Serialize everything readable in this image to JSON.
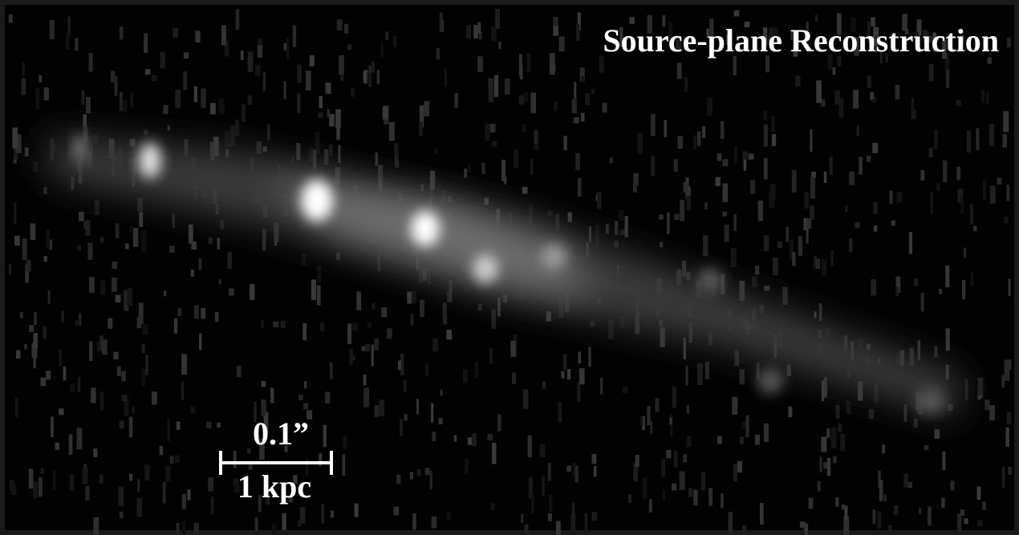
{
  "title": "Source-plane Reconstruction",
  "scale_bar": {
    "angular": "0.1”",
    "physical": "1 kpc"
  }
}
